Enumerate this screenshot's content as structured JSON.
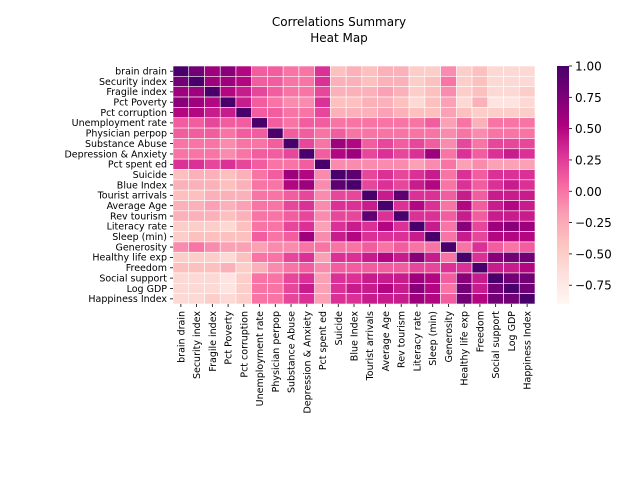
{
  "chart_data": {
    "type": "heatmap",
    "title": [
      "Correlations Summary",
      "Heat Map"
    ],
    "labels": [
      "brain drain",
      "Security index",
      "Fragile index",
      "Pct Poverty",
      "Pct corruption",
      "Unemployment rate",
      "Physician perpop",
      "Substance Abuse",
      "Depression & Anxiety",
      "Pct spent ed",
      "Suicide",
      "Blue Index",
      "Tourist arrivals",
      "Average Age",
      "Rev tourism",
      "Literacy rate",
      "Sleep (min)",
      "Generosity",
      "Healthy life exp",
      "Freedom",
      "Social support",
      "Log GDP",
      "Happiness Index"
    ],
    "row_labels": [
      "brain drain",
      "Security index",
      "Fragile index ",
      "Pct Poverty",
      "Pct corruption",
      "Unemployment rate",
      "Physician perpop",
      "Substance Abuse",
      "Depression & Anxiety",
      "Pct spent ed",
      "Suicide",
      "Blue Index",
      "Tourist arrivals",
      "Average Age",
      "Rev tourism",
      "Literacy rate",
      "Sleep (min)",
      "Generosity",
      "Healthy life exp",
      "Freedom",
      "Social support",
      "Log GDP",
      "Happiness Index"
    ],
    "col_labels": [
      "brain drain",
      "Security index",
      "Fragile index",
      "Pct Poverty",
      "Pct corruption",
      "Unemployment rate",
      "Physician perpop",
      "Substance Abuse",
      "Depression & Anxiety",
      "Pct spent ed",
      "Suicide",
      "Blue Index",
      "Tourist arrivals",
      "Average Age",
      "Rev tourism",
      "Literacy rate",
      "Sleep (min)",
      "Generosity",
      "Healthy life exp",
      "Freedom",
      "Social support",
      "Log GDP",
      "Happiness Index"
    ],
    "values": [
      [
        1.0,
        0.8,
        0.6,
        0.7,
        0.5,
        0.1,
        0.1,
        0.0,
        0.0,
        0.3,
        -0.4,
        -0.3,
        -0.4,
        -0.3,
        -0.3,
        -0.5,
        -0.5,
        -0.1,
        -0.5,
        -0.4,
        -0.6,
        -0.6,
        -0.6
      ],
      [
        0.8,
        1.0,
        0.6,
        0.6,
        0.5,
        0.1,
        0.1,
        0.0,
        0.0,
        0.3,
        -0.3,
        -0.3,
        -0.4,
        -0.3,
        -0.3,
        -0.5,
        -0.4,
        0.0,
        -0.5,
        -0.4,
        -0.6,
        -0.6,
        -0.6
      ],
      [
        0.6,
        0.6,
        1.0,
        0.5,
        0.4,
        0.2,
        0.1,
        0.0,
        0.0,
        0.2,
        -0.3,
        -0.3,
        -0.3,
        -0.2,
        -0.3,
        -0.5,
        -0.4,
        -0.1,
        -0.5,
        -0.4,
        -0.6,
        -0.6,
        -0.5
      ],
      [
        0.7,
        0.6,
        0.5,
        1.0,
        0.4,
        0.1,
        0.0,
        -0.1,
        -0.1,
        0.3,
        -0.4,
        -0.4,
        -0.3,
        -0.3,
        -0.4,
        -0.6,
        -0.4,
        -0.2,
        -0.6,
        -0.3,
        -0.7,
        -0.7,
        -0.6
      ],
      [
        0.5,
        0.5,
        0.4,
        0.4,
        1.0,
        0.1,
        0.1,
        0.0,
        0.0,
        0.2,
        -0.3,
        -0.3,
        -0.3,
        -0.2,
        -0.3,
        -0.4,
        -0.4,
        -0.2,
        -0.4,
        -0.5,
        -0.5,
        -0.5,
        -0.5
      ],
      [
        0.1,
        0.1,
        0.2,
        0.1,
        0.1,
        1.0,
        0.1,
        0.0,
        0.1,
        0.1,
        0.0,
        0.0,
        0.0,
        0.0,
        0.0,
        0.0,
        0.1,
        -0.2,
        0.0,
        -0.3,
        0.0,
        0.0,
        0.0
      ],
      [
        0.1,
        0.1,
        0.1,
        0.0,
        0.1,
        0.1,
        1.0,
        0.1,
        0.1,
        0.0,
        0.1,
        0.0,
        0.0,
        0.0,
        0.0,
        0.0,
        0.0,
        -0.1,
        0.0,
        -0.1,
        0.0,
        0.0,
        0.0
      ],
      [
        0.0,
        0.0,
        0.0,
        -0.1,
        0.0,
        0.0,
        0.1,
        1.0,
        0.2,
        0.0,
        0.6,
        0.5,
        0.1,
        0.2,
        0.1,
        0.2,
        0.1,
        -0.1,
        0.2,
        0.0,
        0.2,
        0.2,
        0.2
      ],
      [
        0.0,
        0.0,
        0.0,
        -0.1,
        0.0,
        0.1,
        0.1,
        0.2,
        1.0,
        0.1,
        0.5,
        0.6,
        0.2,
        0.3,
        0.2,
        0.3,
        0.6,
        0.0,
        0.3,
        0.1,
        0.3,
        0.4,
        0.3
      ],
      [
        0.3,
        0.3,
        0.2,
        0.3,
        0.2,
        0.1,
        0.0,
        0.0,
        0.1,
        1.0,
        -0.1,
        -0.1,
        -0.1,
        -0.1,
        -0.1,
        -0.2,
        -0.1,
        0.0,
        -0.2,
        -0.1,
        -0.2,
        -0.2,
        -0.2
      ],
      [
        -0.4,
        -0.3,
        -0.3,
        -0.4,
        -0.3,
        0.0,
        0.1,
        0.6,
        0.5,
        -0.1,
        1.0,
        0.9,
        0.2,
        0.3,
        0.2,
        0.3,
        0.4,
        0.0,
        0.3,
        0.1,
        0.3,
        0.3,
        0.3
      ],
      [
        -0.3,
        -0.3,
        -0.3,
        -0.4,
        -0.3,
        0.0,
        0.0,
        0.5,
        0.6,
        -0.1,
        0.9,
        1.0,
        0.2,
        0.3,
        0.2,
        0.4,
        0.5,
        0.0,
        0.3,
        0.1,
        0.3,
        0.4,
        0.3
      ],
      [
        -0.4,
        -0.4,
        -0.3,
        -0.3,
        -0.3,
        0.0,
        0.0,
        0.1,
        0.2,
        -0.1,
        0.2,
        0.2,
        1.0,
        0.4,
        0.9,
        0.3,
        0.3,
        0.1,
        0.4,
        0.1,
        0.4,
        0.4,
        0.4
      ],
      [
        -0.3,
        -0.3,
        -0.2,
        -0.3,
        -0.2,
        0.0,
        0.0,
        0.2,
        0.3,
        -0.1,
        0.3,
        0.3,
        0.4,
        1.0,
        0.3,
        0.5,
        0.3,
        0.0,
        0.5,
        0.1,
        0.4,
        0.5,
        0.4
      ],
      [
        -0.3,
        -0.3,
        -0.3,
        -0.4,
        -0.3,
        0.0,
        0.0,
        0.1,
        0.2,
        -0.1,
        0.2,
        0.2,
        0.9,
        0.3,
        1.0,
        0.3,
        0.3,
        0.1,
        0.4,
        0.1,
        0.4,
        0.4,
        0.4
      ],
      [
        -0.5,
        -0.5,
        -0.5,
        -0.6,
        -0.4,
        0.0,
        0.0,
        0.2,
        0.3,
        -0.2,
        0.3,
        0.4,
        0.3,
        0.5,
        0.3,
        1.0,
        0.4,
        0.0,
        0.7,
        0.2,
        0.6,
        0.7,
        0.6
      ],
      [
        -0.5,
        -0.4,
        -0.4,
        -0.4,
        -0.4,
        0.1,
        0.0,
        0.1,
        0.6,
        -0.1,
        0.4,
        0.5,
        0.3,
        0.3,
        0.3,
        0.4,
        1.0,
        0.0,
        0.4,
        0.2,
        0.5,
        0.5,
        0.5
      ],
      [
        -0.1,
        0.0,
        -0.1,
        -0.2,
        -0.2,
        -0.2,
        -0.1,
        -0.1,
        0.0,
        0.0,
        0.0,
        0.0,
        0.1,
        0.0,
        0.1,
        0.0,
        0.0,
        1.0,
        0.0,
        0.3,
        0.1,
        0.0,
        0.1
      ],
      [
        -0.5,
        -0.5,
        -0.5,
        -0.6,
        -0.4,
        0.0,
        0.0,
        0.2,
        0.3,
        -0.2,
        0.3,
        0.3,
        0.4,
        0.5,
        0.4,
        0.7,
        0.4,
        0.0,
        1.0,
        0.3,
        0.7,
        0.8,
        0.8
      ],
      [
        -0.4,
        -0.4,
        -0.4,
        -0.3,
        -0.5,
        -0.3,
        -0.1,
        0.0,
        0.1,
        -0.1,
        0.1,
        0.1,
        0.1,
        0.1,
        0.1,
        0.2,
        0.2,
        0.3,
        0.3,
        1.0,
        0.4,
        0.4,
        0.5
      ],
      [
        -0.6,
        -0.6,
        -0.6,
        -0.7,
        -0.5,
        0.0,
        0.0,
        0.2,
        0.3,
        -0.2,
        0.3,
        0.3,
        0.4,
        0.4,
        0.4,
        0.6,
        0.5,
        0.1,
        0.7,
        0.4,
        1.0,
        0.8,
        0.8
      ],
      [
        -0.6,
        -0.6,
        -0.6,
        -0.7,
        -0.5,
        0.0,
        0.0,
        0.2,
        0.4,
        -0.2,
        0.3,
        0.4,
        0.4,
        0.5,
        0.4,
        0.7,
        0.5,
        0.0,
        0.8,
        0.4,
        0.8,
        1.0,
        0.8
      ],
      [
        -0.6,
        -0.6,
        -0.5,
        -0.6,
        -0.5,
        0.0,
        0.0,
        0.2,
        0.3,
        -0.2,
        0.3,
        0.3,
        0.4,
        0.4,
        0.4,
        0.6,
        0.5,
        0.1,
        0.8,
        0.5,
        0.8,
        0.8,
        1.0
      ]
    ],
    "vmin": -0.9,
    "vmax": 1.0,
    "colormap": "RdPu",
    "colorbar": {
      "ticks": [
        1.0,
        0.75,
        0.5,
        0.25,
        0.0,
        -0.25,
        -0.5,
        -0.75
      ],
      "tick_labels": [
        "1.00",
        "0.75",
        "0.50",
        "0.25",
        "0.00",
        "−0.25",
        "−0.50",
        "−0.75"
      ]
    },
    "grid": false,
    "cell_border_color": "#ffffff",
    "colors": {
      "low": "#fff7f3",
      "mid": "#f768a1",
      "high": "#49006a"
    }
  }
}
